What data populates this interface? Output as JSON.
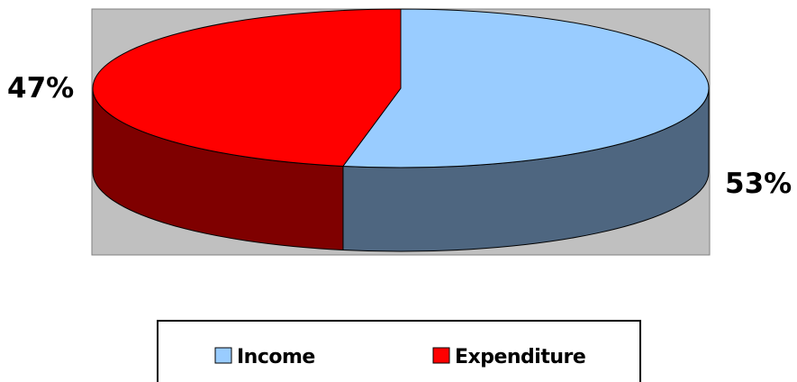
{
  "chart_data": {
    "type": "pie",
    "style": "3d",
    "categories": [
      "Income",
      "Expenditure"
    ],
    "values": [
      53,
      47
    ],
    "data_labels": [
      "53%",
      "47%"
    ],
    "colors": {
      "Income": "#99CCFF",
      "Expenditure": "#FF0000"
    },
    "side_colors": {
      "Income": "#4E6680",
      "Expenditure": "#7F0000"
    },
    "plot_background": "#C0C0C0",
    "legend": {
      "position": "bottom",
      "items": [
        "Income",
        "Expenditure"
      ]
    }
  }
}
